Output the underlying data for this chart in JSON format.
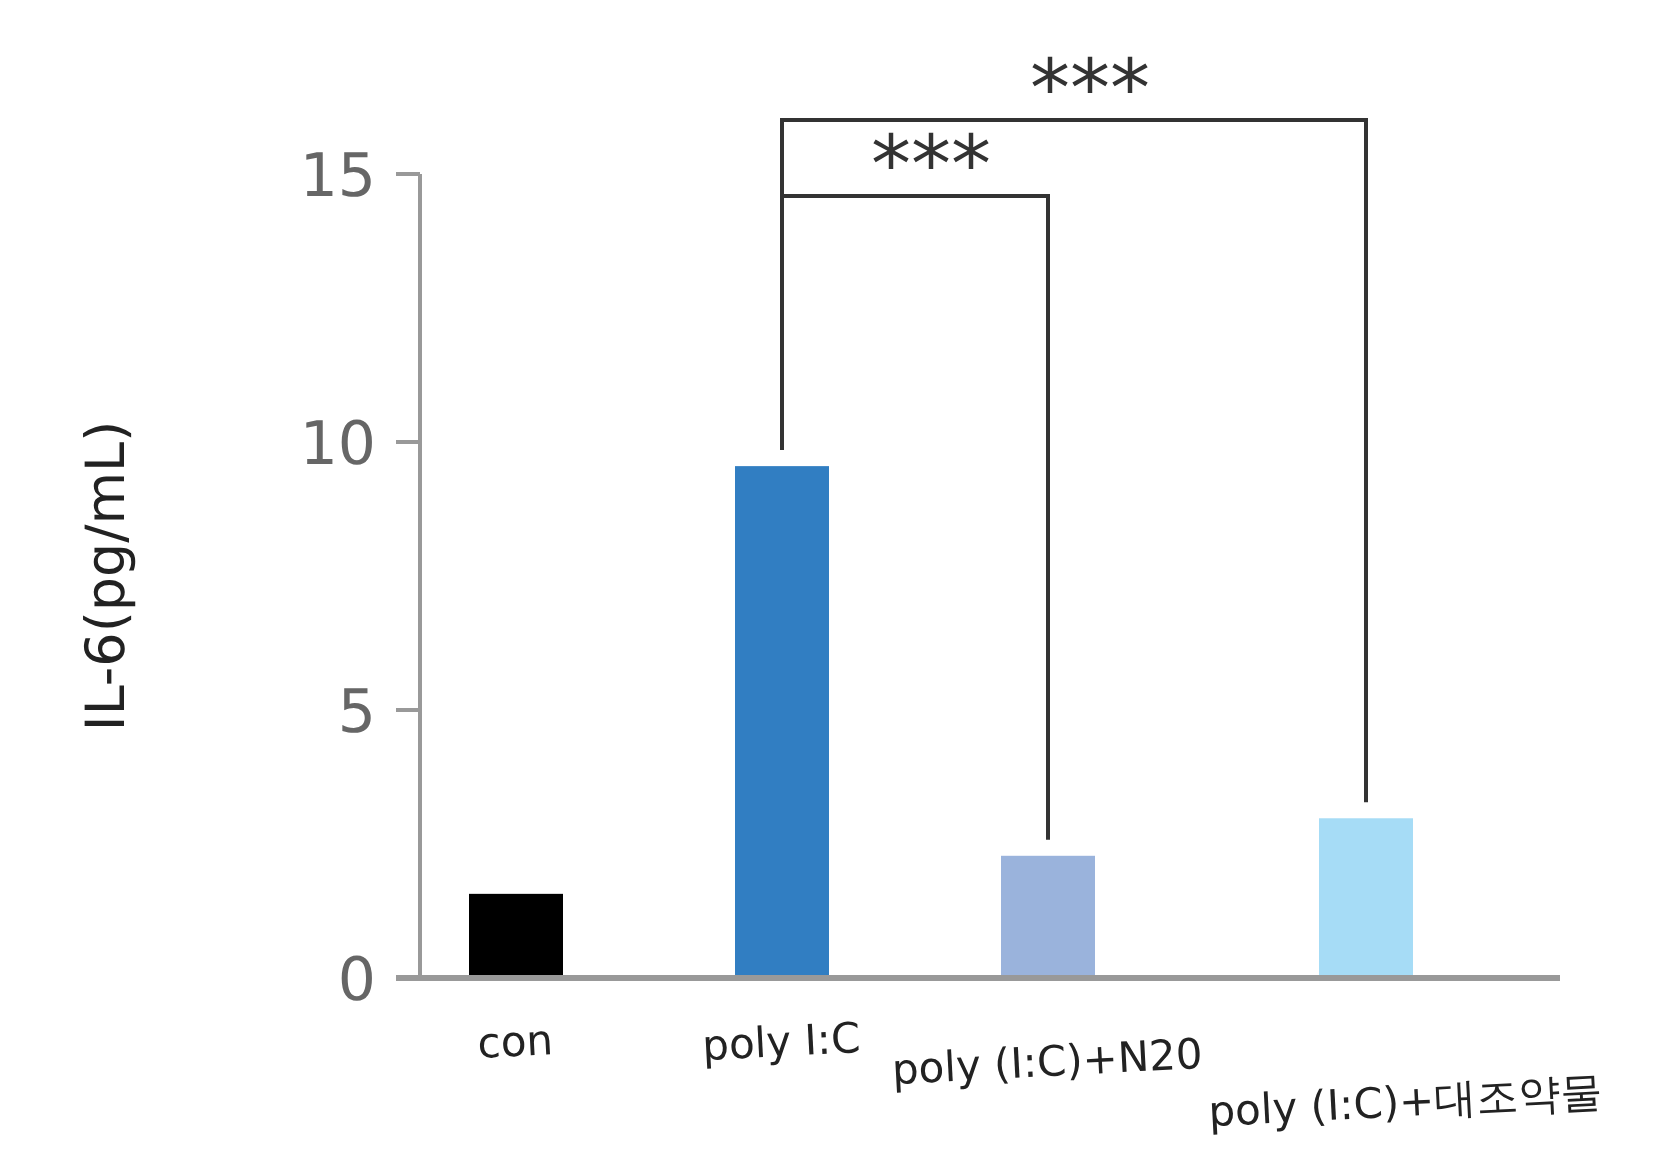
{
  "chart_data": {
    "type": "bar",
    "ylabel": "IL-6(pg/mL)",
    "categories": [
      "con",
      "poly I:C",
      "poly (I:C)+N20",
      "poly (I:C)+대조약물"
    ],
    "values": [
      1.57,
      9.55,
      2.28,
      2.98
    ],
    "colors": [
      "#000000",
      "#317ec2",
      "#9ab3dc",
      "#a6dcf6"
    ],
    "ylim": [
      0,
      15
    ],
    "yticks": [
      0,
      5,
      10,
      15
    ],
    "annotations": [
      "***",
      "***"
    ]
  }
}
